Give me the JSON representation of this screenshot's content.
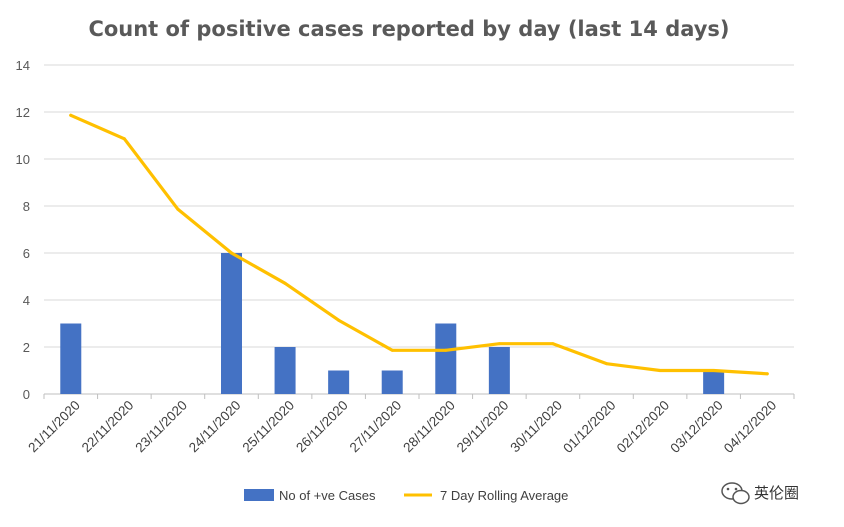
{
  "chart_data": {
    "type": "bar",
    "title": "Count of positive cases reported by day (last 14 days)",
    "xlabel": "",
    "ylabel": "",
    "ylim": [
      0,
      14
    ],
    "yticks": [
      0,
      2,
      4,
      6,
      8,
      10,
      12,
      14
    ],
    "grid": true,
    "legend_position": "bottom",
    "categories": [
      "21/11/2020",
      "22/11/2020",
      "23/11/2020",
      "24/11/2020",
      "25/11/2020",
      "26/11/2020",
      "27/11/2020",
      "28/11/2020",
      "29/11/2020",
      "30/11/2020",
      "01/12/2020",
      "02/12/2020",
      "03/12/2020",
      "04/12/2020"
    ],
    "series": [
      {
        "name": "No of +ve Cases",
        "type": "bar",
        "color": "#4472C4",
        "values": [
          3,
          0,
          0,
          6,
          2,
          1,
          1,
          3,
          2,
          0,
          0,
          0,
          1,
          0
        ]
      },
      {
        "name": "7 Day Rolling Average",
        "type": "line",
        "color": "#FFC000",
        "values": [
          11.86,
          10.86,
          7.86,
          6.0,
          4.71,
          3.14,
          1.86,
          1.86,
          2.14,
          2.14,
          1.29,
          1.0,
          1.0,
          0.86
        ]
      }
    ]
  },
  "watermark": {
    "text": "英伦圈",
    "icon": "wechat-icon"
  }
}
